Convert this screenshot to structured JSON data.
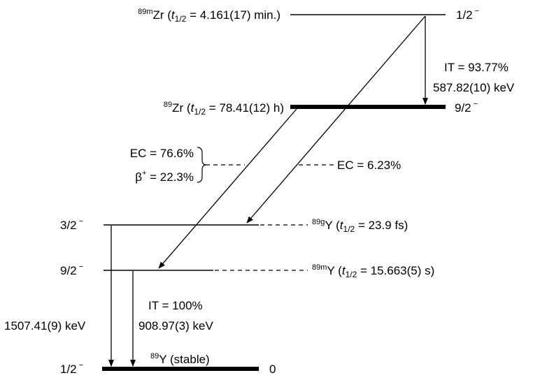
{
  "levels": {
    "zr89m": {
      "mass": "89m",
      "element": "Zr",
      "t_label": "t",
      "t_sub": "1/2",
      "half_life": " = 4.161(17) min.)",
      "spin": "1/2",
      "parity": "−"
    },
    "zr89": {
      "mass": "89",
      "element": "Zr",
      "t_label": "t",
      "t_sub": "1/2",
      "half_life": " = 78.41(12) h)",
      "spin": "9/2",
      "parity": "−"
    },
    "y89g": {
      "mass": "89g",
      "element": "Y",
      "t_label": "t",
      "t_sub": "1/2",
      "half_life": " = 23.9 fs)",
      "spin": "3/2",
      "parity": "−"
    },
    "y89m": {
      "mass": "89m",
      "element": "Y",
      "t_label": "t",
      "t_sub": "1/2",
      "half_life": " = 15.663(5) s)",
      "spin": "9/2",
      "parity": "−"
    },
    "y89": {
      "mass": "89",
      "element": "Y",
      "status": " (stable)",
      "spin": "1/2",
      "parity": "−",
      "energy": "0"
    }
  },
  "transitions": {
    "zr_it": {
      "branch": "IT = 93.77%",
      "energy": "587.82(10) keV"
    },
    "zr_ec_left": {
      "ec": "EC = 76.6%",
      "beta_symbol": "β",
      "beta_sup": "+",
      "beta_value": " = 22.3%"
    },
    "zr_ec_right": {
      "ec": "EC = 6.23%"
    },
    "y_it": {
      "branch": "IT = 100%",
      "energy": "908.97(3) keV"
    },
    "y_gamma": {
      "energy": "1507.41(9) keV"
    }
  }
}
